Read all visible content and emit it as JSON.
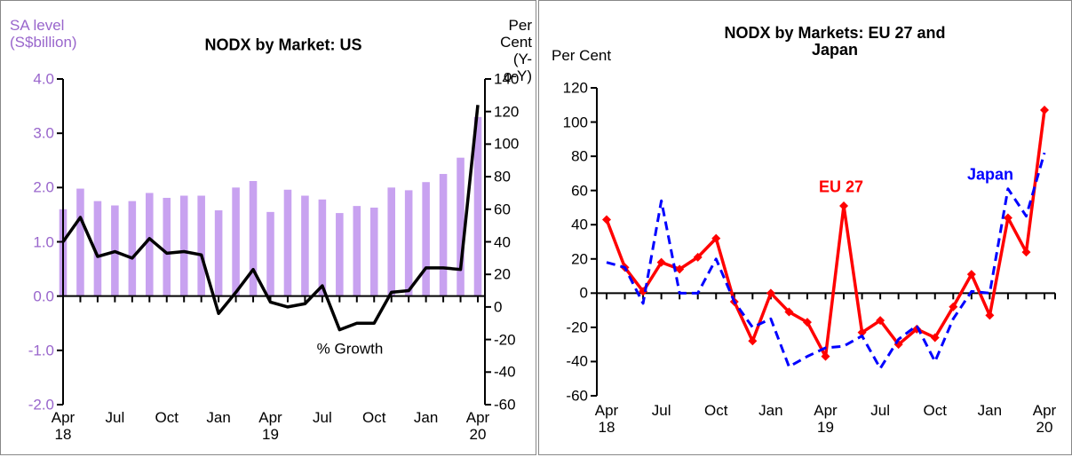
{
  "chart_data": [
    {
      "type": "bar-line",
      "title": "NODX by Market: US",
      "ylabel": "SA level\n(S$billion)",
      "y2label": "Per Cent\n(Y-o-Y)",
      "categories": [
        "Apr\n18",
        null,
        null,
        "Jul",
        null,
        null,
        "Oct",
        null,
        null,
        "Jan",
        null,
        null,
        "Apr\n19",
        null,
        null,
        "Jul",
        null,
        null,
        "Oct",
        null,
        null,
        "Jan",
        null,
        null,
        "Apr\n20"
      ],
      "ylim": [
        -2,
        4
      ],
      "yticks": [
        {
          "value": -2,
          "label": "-2.0"
        },
        {
          "value": -1,
          "label": "-1.0"
        },
        {
          "value": 0,
          "label": "0.0"
        },
        {
          "value": 1,
          "label": "1.0"
        },
        {
          "value": 2,
          "label": "2.0"
        },
        {
          "value": 3,
          "label": "3.0"
        },
        {
          "value": 4,
          "label": "4.0"
        }
      ],
      "y2lim": [
        -60,
        140
      ],
      "y2ticks": [
        -60,
        -40,
        -20,
        0,
        20,
        40,
        60,
        80,
        100,
        120,
        140
      ],
      "label_color": "#9966cc",
      "series": [
        {
          "color": "#c8a2f0",
          "kind": "bar",
          "values": [
            1.6,
            1.98,
            1.75,
            1.67,
            1.75,
            1.9,
            1.81,
            1.85,
            1.85,
            1.58,
            2.0,
            2.12,
            1.55,
            1.96,
            1.85,
            1.78,
            1.53,
            1.66,
            1.63,
            2.0,
            1.95,
            2.1,
            2.25,
            2.55,
            3.3
          ]
        },
        {
          "name": "% Growth",
          "color": "#000000",
          "kind": "line",
          "axis": "y2",
          "values": [
            40,
            55,
            31,
            34,
            30,
            42,
            33,
            34,
            32,
            -4,
            9,
            23,
            3,
            0,
            2,
            13,
            -14,
            -10,
            -10,
            9,
            10,
            24,
            24,
            23,
            124
          ]
        }
      ]
    },
    {
      "type": "line",
      "title": "NODX by Markets: EU 27 and Japan",
      "ylabel": "Per Cent",
      "categories": [
        "Apr\n18",
        null,
        null,
        "Jul",
        null,
        null,
        "Oct",
        null,
        null,
        "Jan",
        null,
        null,
        "Apr\n19",
        null,
        null,
        "Jul",
        null,
        null,
        "Oct",
        null,
        null,
        "Jan",
        null,
        null,
        "Apr\n20"
      ],
      "ylim": [
        -60,
        120
      ],
      "yticks": [
        -60,
        -40,
        -20,
        0,
        20,
        40,
        60,
        80,
        100,
        120
      ],
      "series": [
        {
          "name": "EU 27",
          "color": "#ff0000",
          "kind": "line",
          "values": [
            43,
            15,
            1,
            18,
            14,
            21,
            32,
            -5,
            -28,
            0,
            -11,
            -17,
            -37,
            51,
            -23,
            -16,
            -30,
            -21,
            -26,
            -8,
            11,
            -13,
            44,
            24,
            107
          ]
        },
        {
          "name": "Japan",
          "color": "#0000ff",
          "kind": "dashed",
          "values": [
            18,
            15,
            -6,
            54,
            0,
            0,
            20,
            -5,
            -20,
            -15,
            -43,
            -37,
            -32,
            -31,
            -25,
            -44,
            -27,
            -19,
            -40,
            -15,
            1,
            0,
            61,
            45,
            82
          ]
        }
      ]
    }
  ]
}
